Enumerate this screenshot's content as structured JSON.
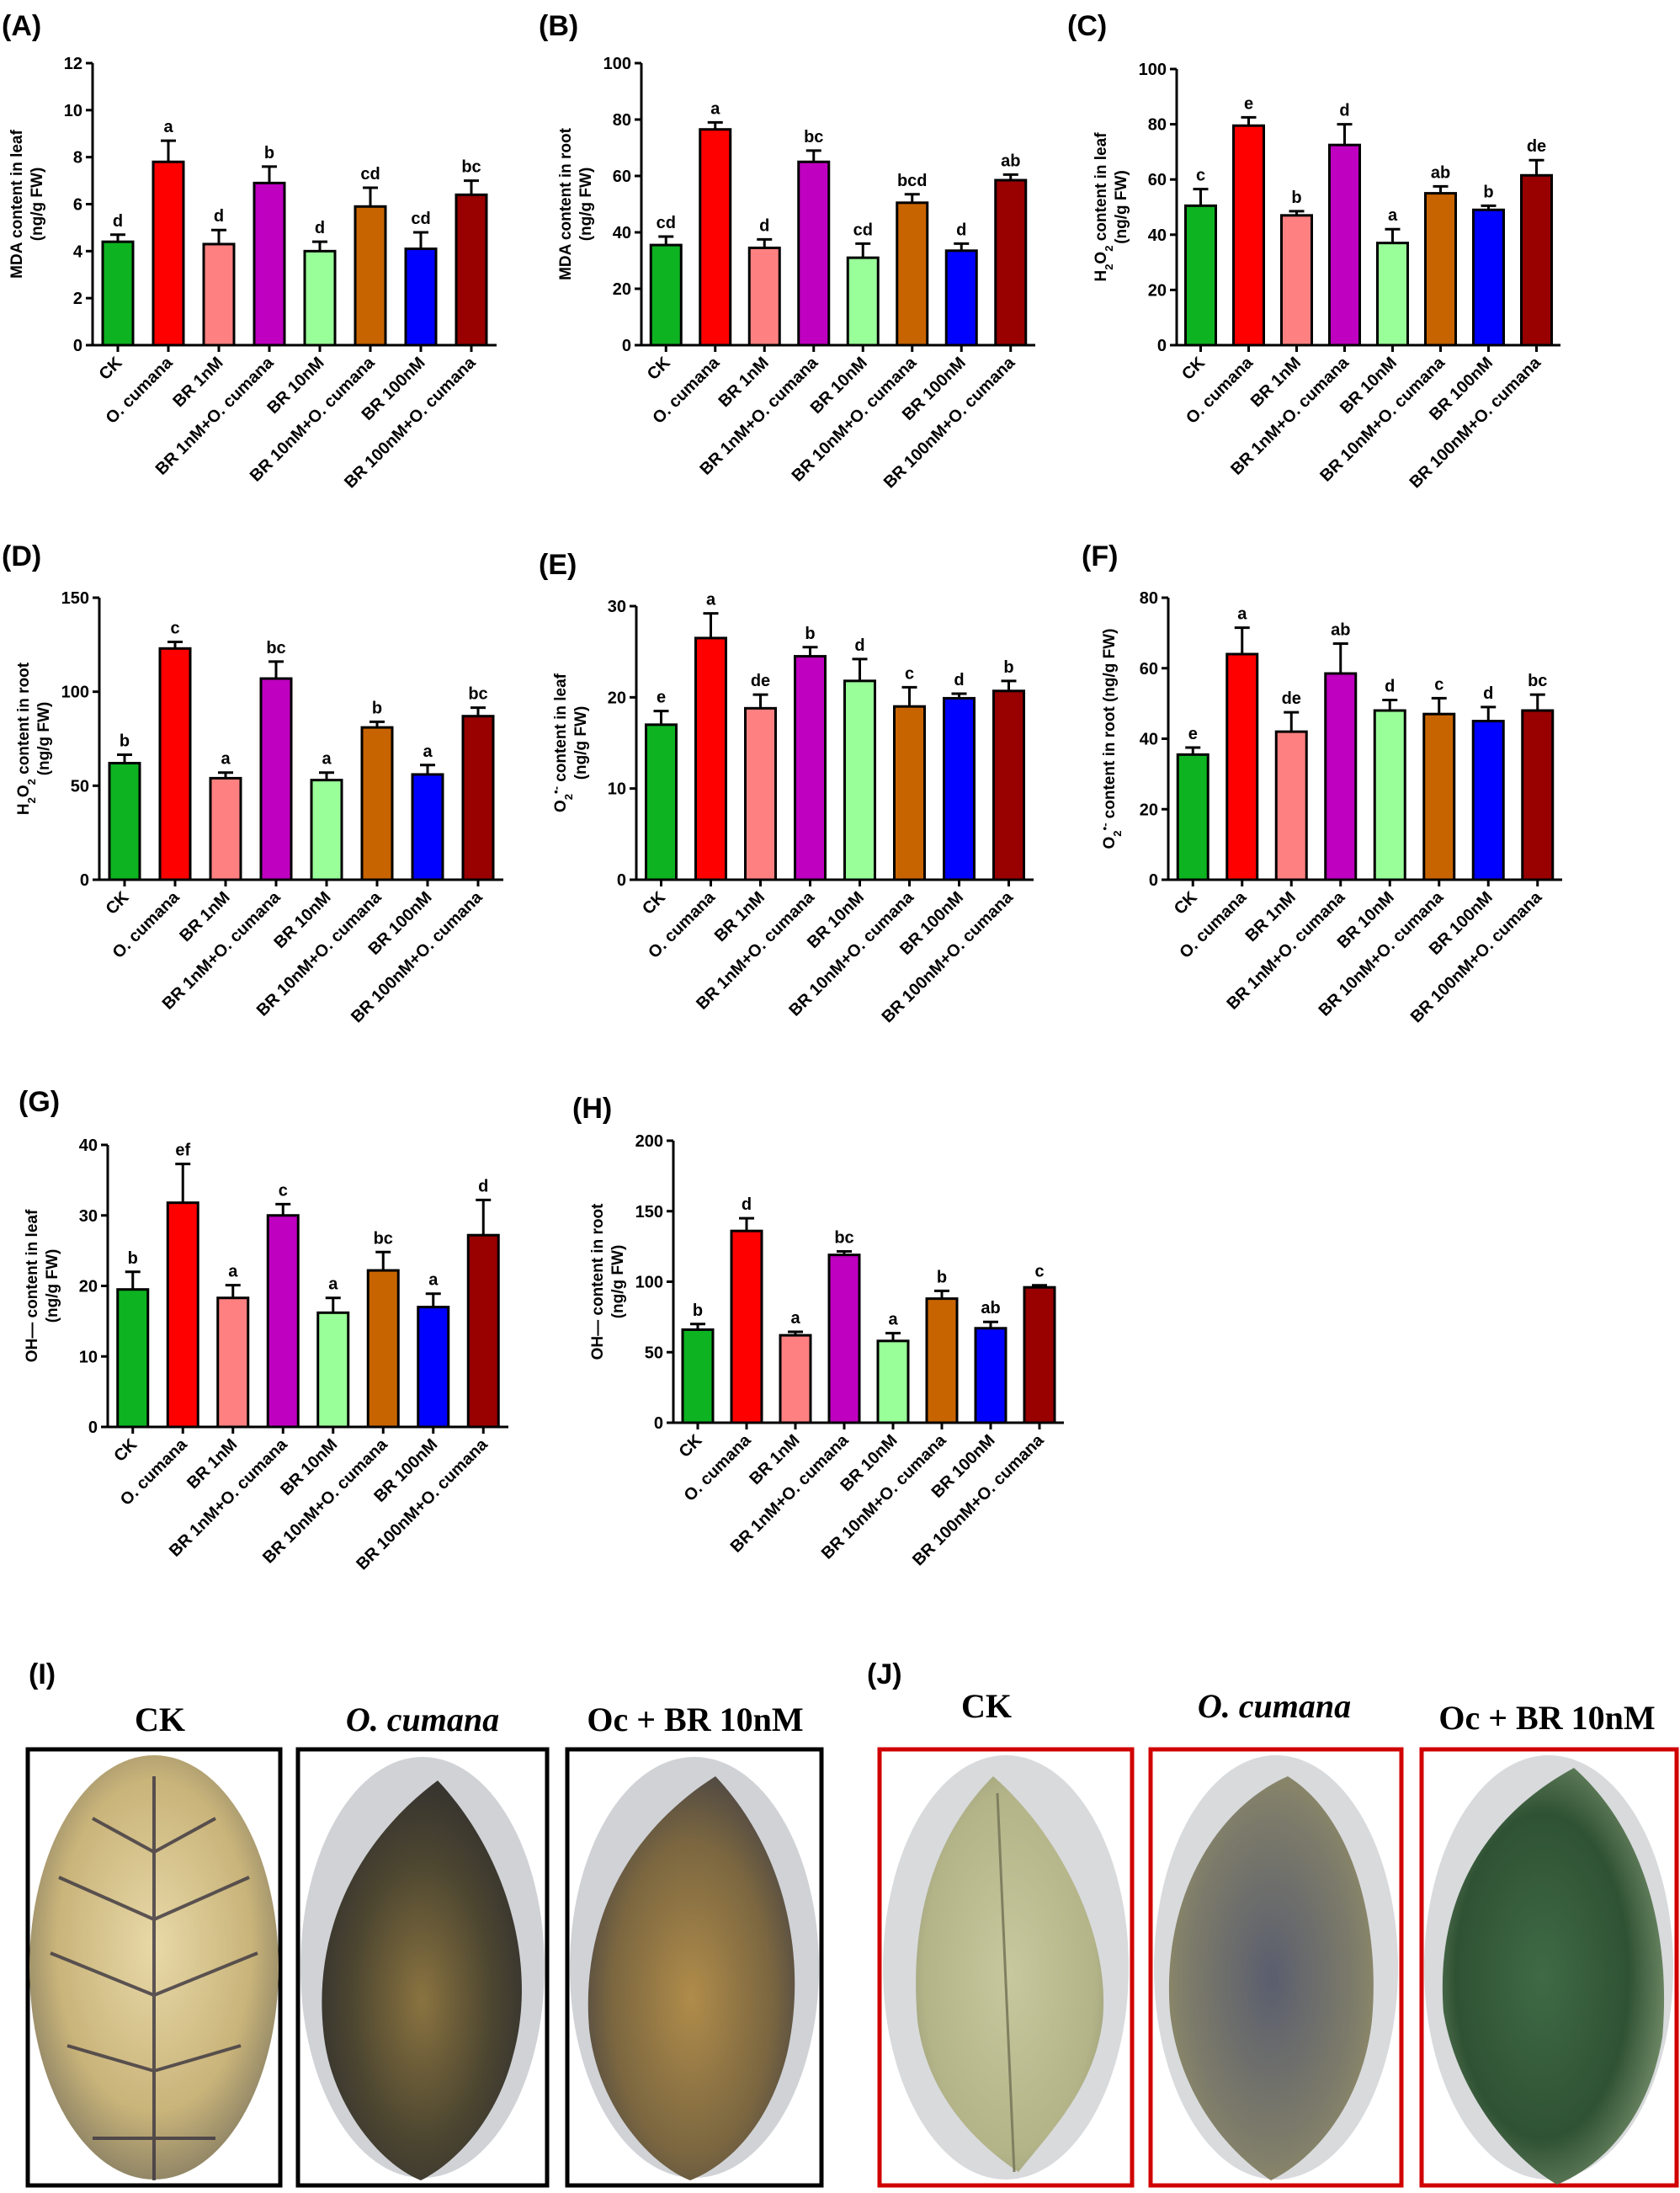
{
  "panel_labels": [
    "(A)",
    "(B)",
    "(C)",
    "(D)",
    "(E)",
    "(F)",
    "(G)",
    "(H)",
    "(I)",
    "(J)"
  ],
  "photos_I": [
    "CK",
    "O. cumana",
    "Oc + BR 10nM"
  ],
  "photos_J": [
    "CK",
    "O. cumana",
    "Oc + BR 10nM"
  ],
  "colors": [
    "#0DB321",
    "#FF0000",
    "#FF8080",
    "#BF00C0",
    "#99FF99",
    "#C86400",
    "#0000FF",
    "#990000"
  ],
  "chart_data": [
    {
      "type": "bar",
      "categories": [
        "CK",
        "O. cumana",
        "BR 1nM",
        "BR 1nM+O. cumana",
        "BR 10nM",
        "BR 10nM+O. cumana",
        "BR 100nM",
        "BR 100nM+O. cumana"
      ],
      "values": [
        4.4,
        7.8,
        4.3,
        6.9,
        4.0,
        5.9,
        4.1,
        6.4
      ],
      "errors": [
        0.3,
        0.9,
        0.6,
        0.7,
        0.4,
        0.8,
        0.7,
        0.6
      ],
      "letters": [
        "d",
        "a",
        "d",
        "b",
        "d",
        "cd",
        "cd",
        "bc"
      ],
      "ylim": [
        0,
        12
      ],
      "yticks": [
        0,
        2,
        4,
        6,
        8,
        10,
        12
      ],
      "ylabel": [
        "MDA content in leaf",
        "(ng/g FW)"
      ],
      "grid": false
    },
    {
      "type": "bar",
      "categories": [
        "CK",
        "O. cumana",
        "BR 1nM",
        "BR 1nM+O. cumana",
        "BR 10nM",
        "BR 10nM+O. cumana",
        "BR 100nM",
        "BR 100nM+O. cumana"
      ],
      "values": [
        35.5,
        76.5,
        34.5,
        65.0,
        31.0,
        50.5,
        33.5,
        58.5
      ],
      "errors": [
        3,
        2.5,
        3,
        4,
        5,
        3,
        2.5,
        2
      ],
      "letters": [
        "cd",
        "a",
        "d",
        "bc",
        "cd",
        "bcd",
        "d",
        "ab"
      ],
      "ylim": [
        0,
        100
      ],
      "yticks": [
        0,
        20,
        40,
        60,
        80,
        100
      ],
      "ylabel": [
        "MDA content in root",
        "(ng/g FW)"
      ],
      "grid": false
    },
    {
      "type": "bar",
      "categories": [
        "CK",
        "O. cumana",
        "BR 1nM",
        "BR 1nM+O. cumana",
        "BR 10nM",
        "BR 10nM+O. cumana",
        "BR 100nM",
        "BR 100nM+O. cumana"
      ],
      "values": [
        50.5,
        79.5,
        47.0,
        72.5,
        37.0,
        55.0,
        49.0,
        61.5
      ],
      "errors": [
        6,
        3,
        1.5,
        7.5,
        5,
        2.5,
        1.5,
        5.5
      ],
      "letters": [
        "c",
        "e",
        "b",
        "d",
        "a",
        "ab",
        "b",
        "de"
      ],
      "ylim": [
        0,
        100
      ],
      "yticks": [
        0,
        20,
        40,
        60,
        80,
        100
      ],
      "ylabel": [
        "H2O2 content in leaf",
        "(ng/g FW)"
      ],
      "grid": false
    },
    {
      "type": "bar",
      "categories": [
        "CK",
        "O. cumana",
        "BR 1nM",
        "BR 1nM+O. cumana",
        "BR 10nM",
        "BR 10nM+O. cumana",
        "BR 100nM",
        "BR 100nM+O. cumana"
      ],
      "values": [
        62,
        123,
        54,
        107,
        53,
        81,
        56,
        87
      ],
      "errors": [
        4.5,
        3.5,
        3,
        9,
        4,
        3,
        5,
        4.5
      ],
      "letters": [
        "b",
        "c",
        "a",
        "bc",
        "a",
        "b",
        "a",
        "bc"
      ],
      "ylim": [
        0,
        150
      ],
      "yticks": [
        0,
        50,
        100,
        150
      ],
      "ylabel": [
        "H2O2 content in root",
        "(ng/g FW)"
      ],
      "grid": false
    },
    {
      "type": "bar",
      "categories": [
        "CK",
        "O. cumana",
        "BR 1nM",
        "BR 1nM+O. cumana",
        "BR 10nM",
        "BR 10nM+O. cumana",
        "BR 100nM",
        "BR 100nM+O. cumana"
      ],
      "values": [
        17.0,
        26.5,
        18.8,
        24.5,
        21.8,
        19.0,
        19.9,
        20.7
      ],
      "errors": [
        1.5,
        2.7,
        1.5,
        1.0,
        2.4,
        2.1,
        0.5,
        1.1
      ],
      "letters": [
        "e",
        "a",
        "de",
        "b",
        "d",
        "c",
        "d",
        "b"
      ],
      "ylim": [
        0,
        30
      ],
      "yticks": [
        0,
        10,
        20,
        30
      ],
      "ylabel": [
        "O2•- content in leaf",
        "(ng/g FW)"
      ],
      "grid": false
    },
    {
      "type": "bar",
      "categories": [
        "CK",
        "O. cumana",
        "BR 1nM",
        "BR 1nM+O. cumana",
        "BR 10nM",
        "BR 10nM+O. cumana",
        "BR 100nM",
        "BR 100nM+O. cumana"
      ],
      "values": [
        35.5,
        64.0,
        42.0,
        58.5,
        48.0,
        47.0,
        45.0,
        48.0
      ],
      "errors": [
        2,
        7.5,
        5.5,
        8.5,
        3,
        4.5,
        4,
        4.5
      ],
      "letters": [
        "e",
        "a",
        "de",
        "ab",
        "d",
        "c",
        "d",
        "bc"
      ],
      "ylim": [
        0,
        80
      ],
      "yticks": [
        0,
        20,
        40,
        60,
        80
      ],
      "ylabel": [
        "O2•- content in root (ng/g FW)"
      ],
      "grid": false
    },
    {
      "type": "bar",
      "categories": [
        "CK",
        "O. cumana",
        "BR 1nM",
        "BR 1nM+O. cumana",
        "BR 10nM",
        "BR 10nM+O. cumana",
        "BR 100nM",
        "BR 100nM+O. cumana"
      ],
      "values": [
        19.5,
        31.8,
        18.3,
        30.0,
        16.2,
        22.2,
        17.0,
        27.2
      ],
      "errors": [
        2.5,
        5.5,
        1.8,
        1.6,
        2.1,
        2.6,
        1.9,
        5.0
      ],
      "letters": [
        "b",
        "ef",
        "a",
        "c",
        "a",
        "bc",
        "a",
        "d"
      ],
      "ylim": [
        0,
        40
      ],
      "yticks": [
        0,
        10,
        20,
        30,
        40
      ],
      "ylabel": [
        "OH— content in leaf",
        "(ng/g FW)"
      ],
      "grid": false
    },
    {
      "type": "bar",
      "categories": [
        "CK",
        "O. cumana",
        "BR 1nM",
        "BR 1nM+O. cumana",
        "BR 10nM",
        "BR 10nM+O. cumana",
        "BR 100nM",
        "BR 100nM+O. cumana"
      ],
      "values": [
        66,
        136,
        62,
        119,
        58,
        88,
        67,
        96
      ],
      "errors": [
        4,
        9,
        2.5,
        2.5,
        5.5,
        5.5,
        4.5,
        1.5
      ],
      "letters": [
        "b",
        "d",
        "a",
        "bc",
        "a",
        "b",
        "ab",
        "c"
      ],
      "ylim": [
        0,
        200
      ],
      "yticks": [
        0,
        50,
        100,
        150,
        200
      ],
      "ylabel": [
        "OH— content in root",
        "(ng/g FW)"
      ],
      "grid": false
    }
  ]
}
